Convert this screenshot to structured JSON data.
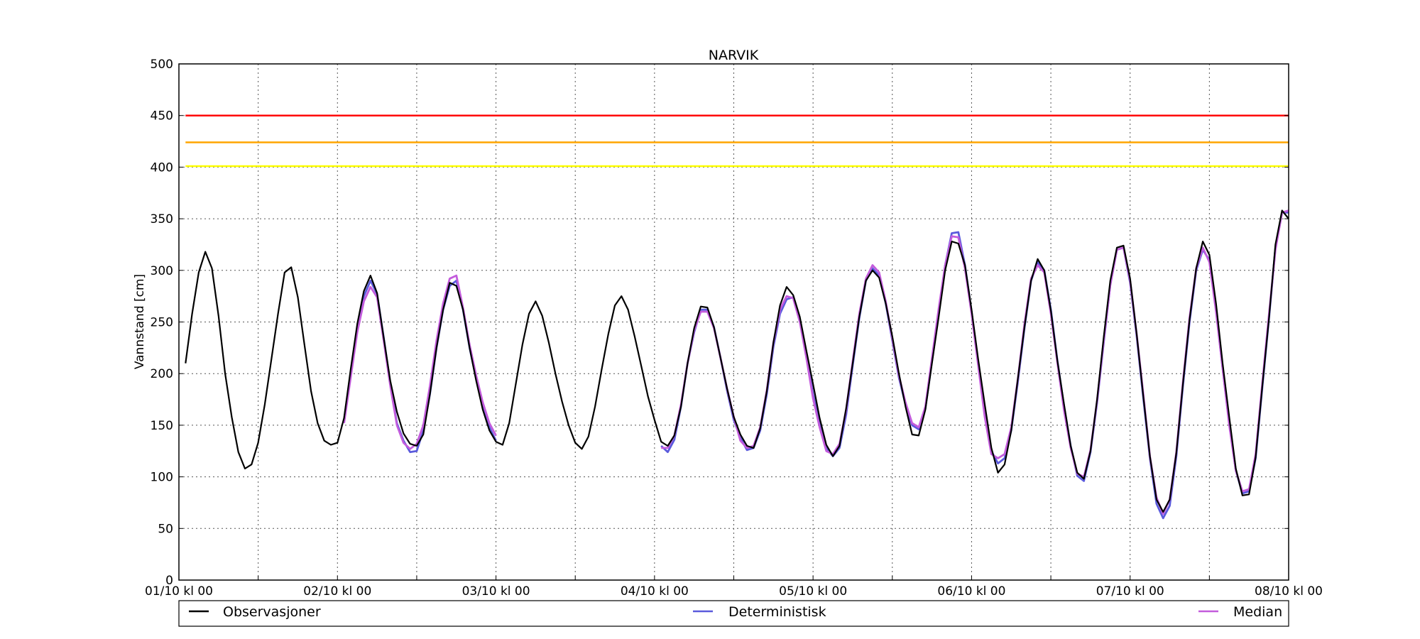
{
  "chart_data": {
    "type": "line",
    "title": "NARVIK",
    "xlabel": "",
    "ylabel": "Vannstand [cm]",
    "ylim": [
      0,
      500
    ],
    "xlim_hours": [
      0,
      168
    ],
    "y_ticks": [
      0,
      50,
      100,
      150,
      200,
      250,
      300,
      350,
      400,
      450,
      500
    ],
    "x_tick_labels": [
      "01/10 kl 00",
      "02/10 kl 00",
      "03/10 kl 00",
      "04/10 kl 00",
      "05/10 kl 00",
      "06/10 kl 00",
      "07/10 kl 00",
      "08/10 kl 00"
    ],
    "x_tick_hours": [
      0,
      24,
      48,
      72,
      96,
      120,
      144,
      168
    ],
    "grid": true,
    "legend_placement": "bottom",
    "thresholds": [
      {
        "value": 450,
        "color": "#ff0000"
      },
      {
        "value": 424,
        "color": "#ffa500"
      },
      {
        "value": 401,
        "color": "#ffff00"
      }
    ],
    "series": [
      {
        "name": "Observasjoner",
        "color": "#000000",
        "x_hours": [
          1,
          2,
          3,
          4,
          5,
          6,
          7,
          8,
          9,
          10,
          11,
          12,
          13,
          14,
          15,
          16,
          17,
          18,
          19,
          20,
          21,
          22,
          23,
          24,
          25,
          26,
          27,
          28,
          29,
          30,
          31,
          32,
          33,
          34,
          35,
          36,
          37,
          38,
          39,
          40,
          41,
          42,
          43,
          44,
          45,
          46,
          47,
          48,
          49,
          50,
          51,
          52,
          53,
          54,
          55,
          56,
          57,
          58,
          59,
          60,
          61,
          62,
          63,
          64,
          65,
          66,
          67,
          68,
          69,
          70,
          71,
          72,
          73,
          74,
          75,
          76,
          77,
          78,
          79,
          80,
          81,
          82,
          83,
          84,
          85,
          86,
          87,
          88,
          89,
          90,
          91,
          92,
          93,
          94,
          95,
          96,
          97,
          98,
          99,
          100,
          101,
          102,
          103,
          104,
          105,
          106,
          107,
          108,
          109,
          110,
          111,
          112,
          113,
          114,
          115,
          116,
          117,
          118,
          119,
          120,
          121,
          122,
          123,
          124,
          125,
          126,
          127,
          128,
          129,
          130,
          131,
          132,
          133,
          134,
          135,
          136,
          137,
          138,
          139,
          140,
          141,
          142,
          143,
          144,
          145,
          146,
          147,
          148,
          149,
          150,
          151,
          152,
          153,
          154,
          155,
          156,
          157,
          158,
          159,
          160,
          161,
          162,
          163,
          164,
          165,
          166,
          167,
          168
        ],
        "values": [
          210,
          258,
          298,
          318,
          302,
          256,
          200,
          158,
          124,
          108,
          112,
          133,
          170,
          214,
          258,
          298,
          303,
          274,
          228,
          183,
          152,
          135,
          131,
          133,
          157,
          204,
          248,
          280,
          295,
          278,
          235,
          193,
          163,
          142,
          132,
          130,
          141,
          180,
          225,
          262,
          288,
          285,
          262,
          225,
          193,
          165,
          145,
          134,
          131,
          152,
          190,
          228,
          258,
          270,
          256,
          230,
          200,
          173,
          150,
          133,
          127,
          139,
          168,
          204,
          238,
          266,
          275,
          262,
          236,
          207,
          178,
          155,
          134,
          130,
          140,
          168,
          210,
          244,
          265,
          264,
          245,
          215,
          185,
          158,
          141,
          130,
          128,
          147,
          183,
          230,
          266,
          284,
          276,
          255,
          222,
          190,
          157,
          131,
          120,
          130,
          166,
          210,
          255,
          290,
          300,
          293,
          268,
          236,
          200,
          168,
          141,
          140,
          165,
          210,
          254,
          300,
          328,
          326,
          305,
          262,
          214,
          170,
          128,
          104,
          112,
          145,
          195,
          245,
          290,
          311,
          300,
          261,
          212,
          170,
          130,
          104,
          98,
          125,
          175,
          235,
          290,
          322,
          324,
          292,
          238,
          178,
          120,
          78,
          66,
          78,
          123,
          190,
          252,
          302,
          328,
          315,
          268,
          210,
          158,
          108,
          82,
          83,
          119,
          187,
          252,
          325,
          358,
          350
        ]
      },
      {
        "name": "Deterministisk",
        "color": "#5a5adc",
        "segments": [
          {
            "x_hours": [
              25,
              26,
              27,
              28,
              29,
              30,
              31,
              32,
              33,
              34,
              35,
              36,
              37,
              38,
              39,
              40,
              41,
              42,
              43,
              44,
              45,
              46,
              47,
              48
            ],
            "values": [
              155,
              200,
              245,
              275,
              290,
              277,
              235,
              190,
              152,
              135,
              124,
              125,
              145,
              180,
              225,
              262,
              285,
              290,
              262,
              225,
              195,
              168,
              148,
              135
            ]
          },
          {
            "x_hours": [
              73,
              74,
              75,
              76,
              77,
              78,
              79,
              80,
              81,
              82,
              83,
              84,
              85,
              86,
              87,
              88,
              89,
              90,
              91,
              92,
              93,
              94,
              95,
              96,
              97,
              98,
              99,
              100,
              101,
              102,
              103,
              104,
              105,
              106,
              107,
              108,
              109,
              110,
              111,
              112,
              113,
              114,
              115,
              116,
              117,
              118,
              119,
              120,
              121,
              122,
              123,
              124,
              125,
              126,
              127,
              128,
              129,
              130,
              131,
              132,
              133,
              134,
              135,
              136,
              137,
              138,
              139,
              140,
              141,
              142,
              143,
              144,
              145,
              146,
              147,
              148,
              149,
              150,
              151,
              152,
              153,
              154,
              155,
              156,
              157,
              158,
              159,
              160,
              161,
              162,
              163,
              164,
              165,
              166,
              167,
              168
            ],
            "values": [
              130,
              124,
              136,
              168,
              210,
              240,
              262,
              262,
              245,
              215,
              183,
              155,
              138,
              126,
              128,
              145,
              180,
              226,
              258,
              272,
              274,
              252,
              218,
              180,
              152,
              128,
              120,
              128,
              160,
              208,
              254,
              290,
              302,
              295,
              268,
              232,
              196,
              170,
              150,
              146,
              166,
              212,
              258,
              305,
              336,
              337,
              305,
              260,
              210,
              162,
              125,
              113,
              118,
              145,
              192,
              244,
              290,
              308,
              300,
              262,
              212,
              168,
              130,
              101,
              96,
              124,
              172,
              230,
              286,
              320,
              322,
              288,
              236,
              176,
              118,
              74,
              60,
              72,
              120,
              188,
              250,
              300,
              320,
              310,
              262,
              205,
              152,
              106,
              84,
              86,
              118,
              186,
              252,
              322,
              356,
              356
            ]
          }
        ]
      },
      {
        "name": "Median",
        "color": "#c35cdc",
        "segments": [
          {
            "x_hours": [
              25,
              26,
              27,
              28,
              29,
              30,
              31,
              32,
              33,
              34,
              35,
              36,
              37,
              38,
              39,
              40,
              41,
              42,
              43,
              44,
              45,
              46,
              47,
              48
            ],
            "values": [
              152,
              196,
              240,
              270,
              284,
              274,
              232,
              188,
              150,
              133,
              127,
              132,
              150,
              188,
              232,
              268,
              292,
              295,
              264,
              228,
              198,
              172,
              152,
              140
            ]
          },
          {
            "x_hours": [
              73,
              74,
              75,
              76,
              77,
              78,
              79,
              80,
              81,
              82,
              83,
              84,
              85,
              86,
              87,
              88,
              89,
              90,
              91,
              92,
              93,
              94,
              95,
              96,
              97,
              98,
              99,
              100,
              101,
              102,
              103,
              104,
              105,
              106,
              107,
              108,
              109,
              110,
              111,
              112,
              113,
              114,
              115,
              116,
              117,
              118,
              119,
              120,
              121,
              122,
              123,
              124,
              125,
              126,
              127,
              128,
              129,
              130,
              131,
              132,
              133,
              134,
              135,
              136,
              137,
              138,
              139,
              140,
              141,
              142,
              143,
              144,
              145,
              146,
              147,
              148,
              149,
              150,
              151,
              152,
              153,
              154,
              155,
              156,
              157,
              158,
              159,
              160,
              161,
              162,
              163,
              164,
              165,
              166,
              167,
              168
            ],
            "values": [
              128,
              128,
              140,
              170,
              210,
              242,
              260,
              260,
              244,
              215,
              185,
              158,
              135,
              128,
              130,
              148,
              184,
              230,
              262,
              275,
              273,
              250,
              215,
              176,
              148,
              125,
              122,
              132,
              165,
              212,
              258,
              292,
              305,
              298,
              270,
              234,
              198,
              172,
              152,
              148,
              168,
              215,
              262,
              305,
              333,
              332,
              302,
              258,
              208,
              158,
              122,
              118,
              122,
              148,
              195,
              248,
              292,
              305,
              298,
              258,
              210,
              164,
              128,
              103,
              100,
              126,
              174,
              232,
              286,
              320,
              322,
              290,
              238,
              180,
              120,
              80,
              64,
              78,
              124,
              192,
              254,
              302,
              322,
              308,
              260,
              205,
              150,
              106,
              86,
              88,
              122,
              190,
              256,
              320,
              356,
              358
            ]
          }
        ]
      }
    ]
  }
}
